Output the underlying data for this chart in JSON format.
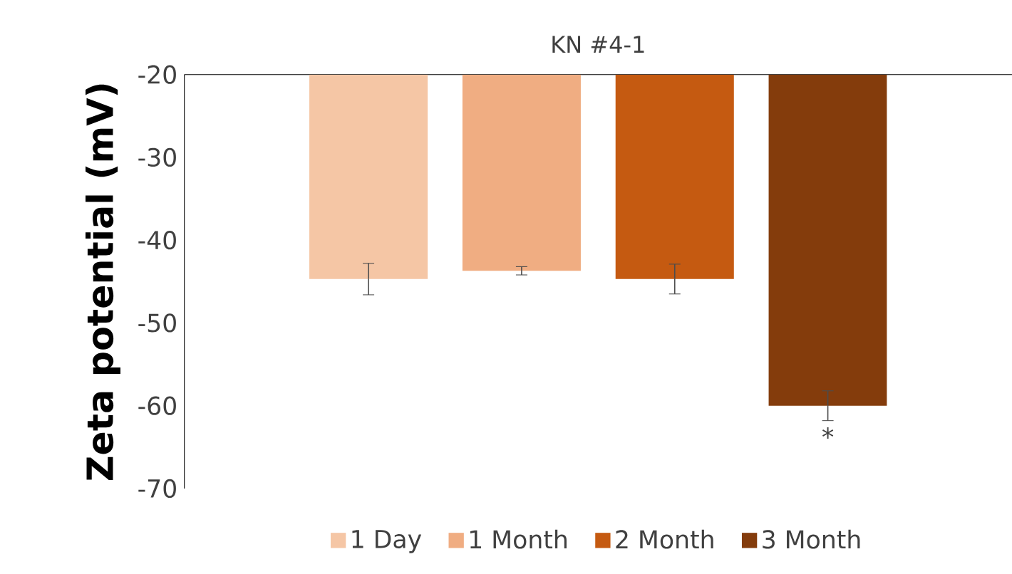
{
  "chart_data": {
    "type": "bar",
    "title": "KN #4-1",
    "ylabel": "Zeta potential (mV)",
    "categories": [
      null
    ],
    "series": [
      {
        "name": "1 Day",
        "color": "#f5c6a5",
        "values": [
          -44.7
        ],
        "errors": [
          1.9
        ]
      },
      {
        "name": "1 Month",
        "color": "#f0ad82",
        "values": [
          -43.7
        ],
        "errors": [
          0.5
        ]
      },
      {
        "name": "2 Month",
        "color": "#c55a11",
        "values": [
          -44.7
        ],
        "errors": [
          1.8
        ]
      },
      {
        "name": "3 Month",
        "color": "#843c0c",
        "values": [
          -60.0
        ],
        "errors": [
          1.8
        ]
      }
    ],
    "ylim": [
      -70,
      -20
    ],
    "yticks": [
      -20,
      -30,
      -40,
      -50,
      -60,
      -70
    ],
    "annotations": [
      "*"
    ],
    "legend": "bottom",
    "grid": false
  }
}
